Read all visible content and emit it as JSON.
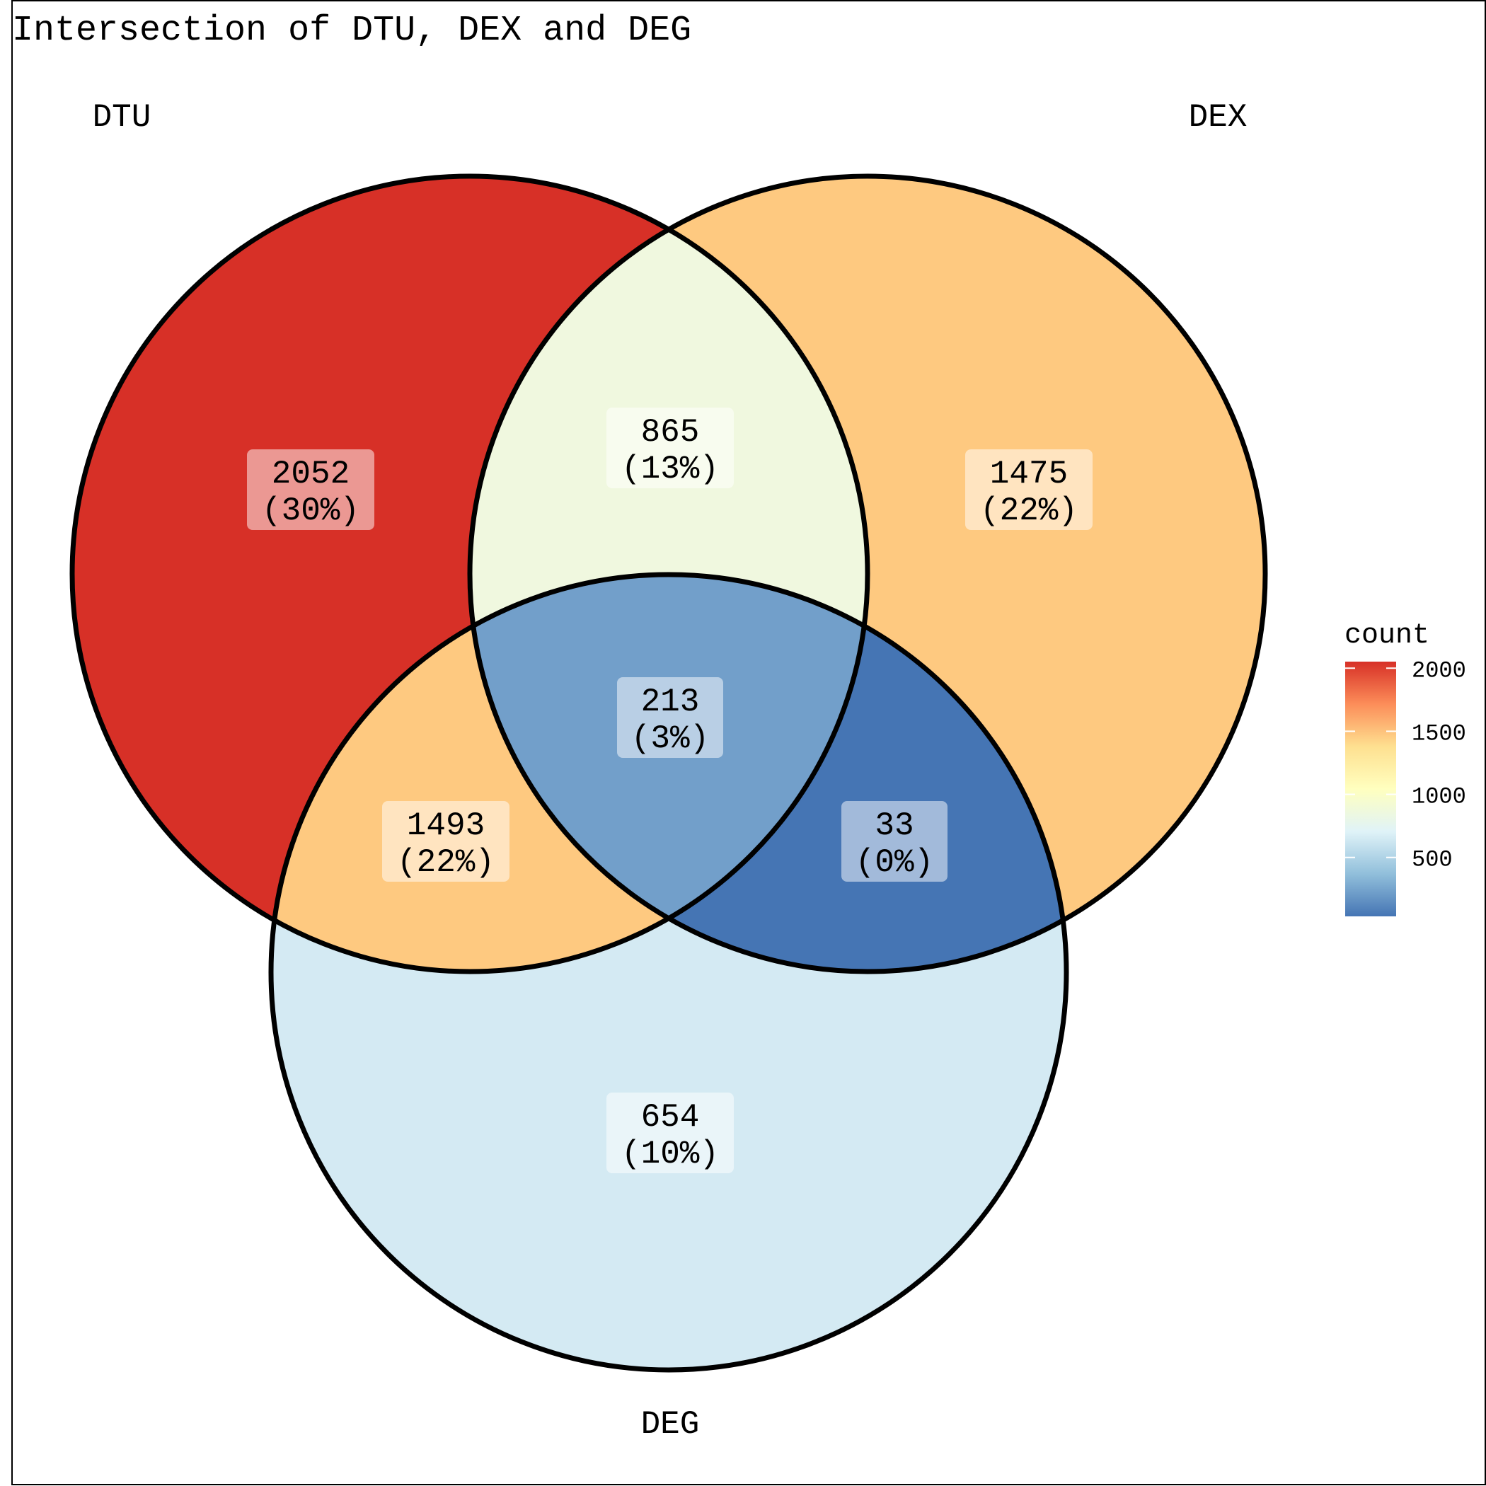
{
  "title": "Intersection of DTU, DEX and DEG",
  "sets": [
    {
      "key": "dtu",
      "name": "DTU"
    },
    {
      "key": "dex",
      "name": "DEX"
    },
    {
      "key": "deg",
      "name": "DEG"
    }
  ],
  "regions": [
    {
      "key": "dtu_only",
      "sets": [
        "DTU"
      ],
      "count": "2052",
      "percent": "(30%)",
      "value": 2052
    },
    {
      "key": "dex_only",
      "sets": [
        "DEX"
      ],
      "count": "1475",
      "percent": "(22%)",
      "value": 1475
    },
    {
      "key": "deg_only",
      "sets": [
        "DEG"
      ],
      "count": "654",
      "percent": "(10%)",
      "value": 654
    },
    {
      "key": "dtu_dex",
      "sets": [
        "DTU",
        "DEX"
      ],
      "count": "865",
      "percent": "(13%)",
      "value": 865
    },
    {
      "key": "dtu_deg",
      "sets": [
        "DTU",
        "DEG"
      ],
      "count": "1493",
      "percent": "(22%)",
      "value": 1493
    },
    {
      "key": "dex_deg",
      "sets": [
        "DEX",
        "DEG"
      ],
      "count": "33",
      "percent": "(0%)",
      "value": 33
    },
    {
      "key": "all",
      "sets": [
        "DTU",
        "DEX",
        "DEG"
      ],
      "count": "213",
      "percent": "(3%)",
      "value": 213
    }
  ],
  "legend": {
    "title": "count",
    "ticks": [
      "2000",
      "1500",
      "1000",
      "500"
    ],
    "tick_values": [
      2000,
      1500,
      1000,
      500
    ],
    "range": [
      33,
      2052
    ],
    "colors": [
      "#4575b4",
      "#91bfdb",
      "#e0f3f8",
      "#ffffbf",
      "#fee090",
      "#fc8d59",
      "#d73027"
    ]
  },
  "region_colors": {
    "dtu_only": "#d73027",
    "dex_only": "#fec980",
    "deg_only": "#d4eaf3",
    "dtu_dex": "#f0f8df",
    "dtu_deg": "#fec980",
    "dex_deg": "#4575b4",
    "all": "#729fca"
  }
}
